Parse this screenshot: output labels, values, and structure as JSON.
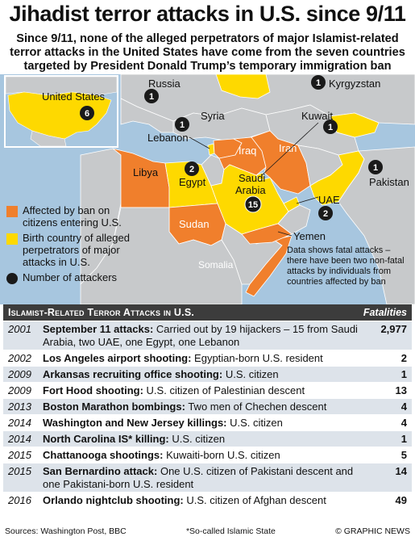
{
  "header": {
    "title": "Jihadist terror attacks in U.S. since 9/11",
    "subtitle": "Since 9/11, none of the alleged perpetrators of major Islamist-related terror attacks in the United States have come from the seven countries targeted by President Donald Trump’s temporary immigration ban"
  },
  "map": {
    "colors": {
      "ban": "#f07f2c",
      "birth": "#fed900",
      "land": "#c7c9cb",
      "sea": "#a7c6df",
      "marker": "#1a1a1a"
    },
    "labels": {
      "united_states": "United States",
      "russia": "Russia",
      "kyrgyzstan": "Kyrgyzstan",
      "syria": "Syria",
      "kuwait": "Kuwait",
      "lebanon": "Lebanon",
      "iraq": "Iraq",
      "iran": "Iran",
      "libya": "Libya",
      "egypt": "Egypt",
      "saudi_arabia_1": "Saudi",
      "saudi_arabia_2": "Arabia",
      "pakistan": "Pakistan",
      "uae": "UAE",
      "sudan": "Sudan",
      "yemen": "Yemen",
      "somalia": "Somalia"
    },
    "markers": {
      "united_states": "6",
      "russia": "1",
      "kyrgyzstan": "1",
      "lebanon": "1",
      "kuwait": "1",
      "egypt": "2",
      "saudi_arabia": "15",
      "pakistan": "1",
      "uae": "2"
    }
  },
  "legend": {
    "ban": "Affected by ban on citizens entering U.S.",
    "birth": "Birth country of alleged perpetrators of major attacks in U.S.",
    "attackers": "Number of attackers"
  },
  "note": "Data shows fatal attacks – there have been two non-fatal attacks by individuals from countries affected by ban",
  "table": {
    "title": "Islamist-Related Terror Attacks in U.S.",
    "fatalities_label": "Fatalities",
    "rows": [
      {
        "year": "2001",
        "name": "September 11 attacks:",
        "detail": "Carried out by 19 hijackers – 15 from Saudi Arabia, two UAE, one Egypt, one Lebanon",
        "fatalities": "2,977"
      },
      {
        "year": "2002",
        "name": "Los Angeles airport shooting:",
        "detail": "Egyptian-born U.S. resident",
        "fatalities": "2"
      },
      {
        "year": "2009",
        "name": "Arkansas recruiting office shooting:",
        "detail": "U.S. citizen",
        "fatalities": "1"
      },
      {
        "year": "2009",
        "name": "Fort Hood shooting:",
        "detail": "U.S. citizen of Palestinian descent",
        "fatalities": "13"
      },
      {
        "year": "2013",
        "name": "Boston Marathon bombings:",
        "detail": "Two men of Chechen descent",
        "fatalities": "4"
      },
      {
        "year": "2014",
        "name": "Washington and New Jersey killings:",
        "detail": "U.S. citizen",
        "fatalities": "4"
      },
      {
        "year": "2014",
        "name": "North Carolina IS* killing:",
        "detail": "U.S. citizen",
        "fatalities": "1"
      },
      {
        "year": "2015",
        "name": "Chattanooga shootings:",
        "detail": "Kuwaiti-born U.S. citizen",
        "fatalities": "5"
      },
      {
        "year": "2015",
        "name": "San Bernardino attack:",
        "detail": "One U.S. citizen of Pakistani descent and one Pakistani-born U.S. resident",
        "fatalities": "14"
      },
      {
        "year": "2016",
        "name": "Orlando nightclub shooting:",
        "detail": "U.S. citizen of Afghan descent",
        "fatalities": "49"
      }
    ]
  },
  "footer": {
    "sources": "Sources: Washington Post, BBC",
    "footnote": "*So-called Islamic State",
    "credit": "© GRAPHIC NEWS"
  }
}
